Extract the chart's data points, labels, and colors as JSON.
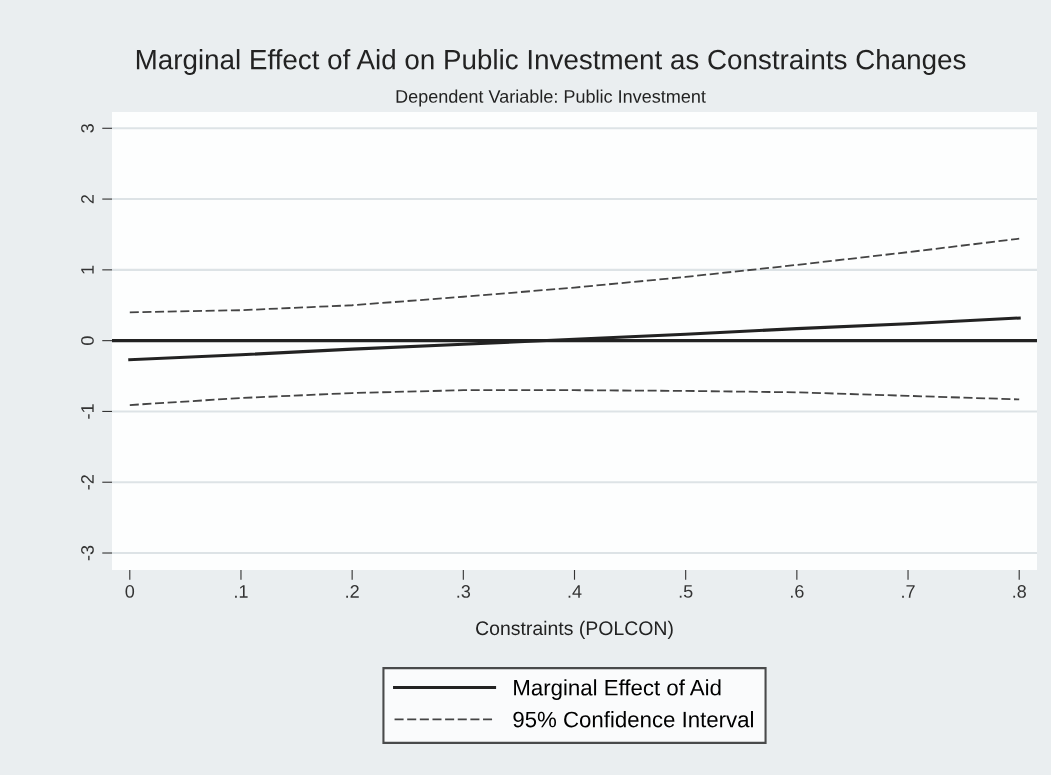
{
  "chart_data": {
    "type": "line",
    "title": "Marginal Effect of Aid on Public Investment as Constraints Changes",
    "subtitle": "Dependent Variable: Public Investment",
    "xlabel": "Constraints (POLCON)",
    "x": [
      0,
      0.1,
      0.2,
      0.3,
      0.4,
      0.5,
      0.6,
      0.7,
      0.8
    ],
    "series": [
      {
        "name": "Marginal Effect of Aid",
        "color": "#222222",
        "line_style": "solid",
        "values": [
          -0.27,
          -0.2,
          -0.12,
          -0.05,
          0.02,
          0.09,
          0.17,
          0.24,
          0.32
        ]
      },
      {
        "name": "95% Confidence Interval",
        "color": "#444444",
        "line_style": "dashed",
        "values": [
          0.4,
          0.43,
          0.5,
          0.62,
          0.75,
          0.9,
          1.07,
          1.25,
          1.44
        ]
      },
      {
        "color": "#444444",
        "line_style": "dashed",
        "values": [
          -0.91,
          -0.81,
          -0.74,
          -0.7,
          -0.7,
          -0.71,
          -0.73,
          -0.78,
          -0.83
        ]
      }
    ],
    "xlim": [
      -0.016,
      0.816
    ],
    "ylim": [
      -3.24,
      3.23
    ],
    "xticks": [
      {
        "value": 0,
        "label": "0"
      },
      {
        "value": 0.1,
        "label": ".1"
      },
      {
        "value": 0.2,
        "label": ".2"
      },
      {
        "value": 0.3,
        "label": ".3"
      },
      {
        "value": 0.4,
        "label": ".4"
      },
      {
        "value": 0.5,
        "label": ".5"
      },
      {
        "value": 0.6,
        "label": ".6"
      },
      {
        "value": 0.7,
        "label": ".7"
      },
      {
        "value": 0.8,
        "label": ".8"
      }
    ],
    "yticks": [
      -3,
      -2,
      -1,
      0,
      1,
      2,
      3
    ],
    "ref_lines": [
      {
        "axis": "y",
        "value": 0,
        "color": "#222222",
        "line_style": "solid"
      }
    ],
    "grid": "y",
    "legend": "bottom",
    "marker": "none"
  }
}
